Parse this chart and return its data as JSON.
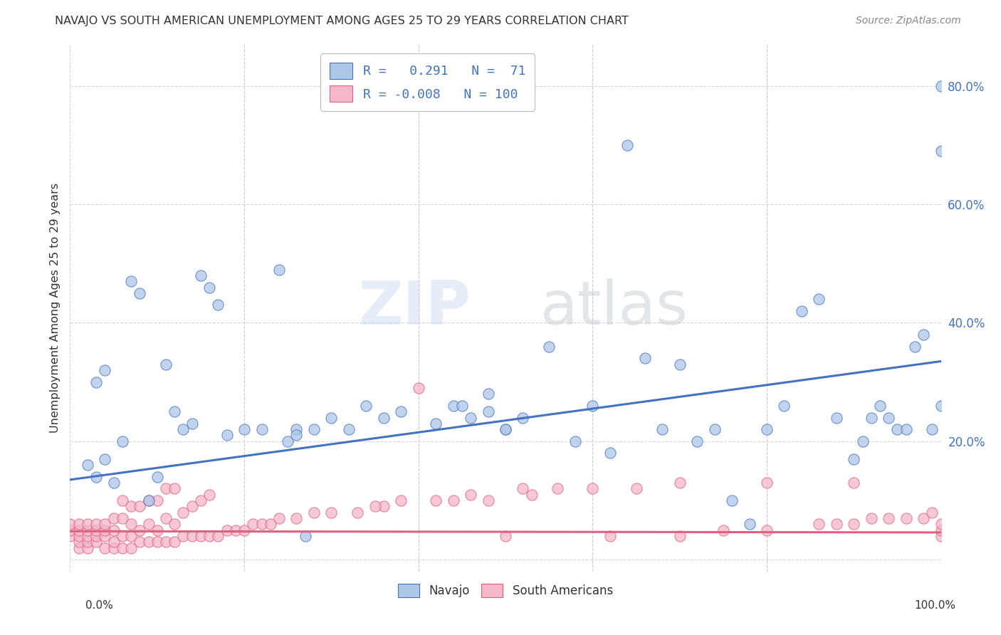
{
  "title": "NAVAJO VS SOUTH AMERICAN UNEMPLOYMENT AMONG AGES 25 TO 29 YEARS CORRELATION CHART",
  "source": "Source: ZipAtlas.com",
  "ylabel": "Unemployment Among Ages 25 to 29 years",
  "xlim": [
    0.0,
    1.0
  ],
  "ylim": [
    -0.02,
    0.87
  ],
  "xticks": [
    0.0,
    0.2,
    0.4,
    0.6,
    0.8,
    1.0
  ],
  "xticklabels_bottom": [
    "0.0%",
    "",
    "",
    "",
    "",
    "100.0%"
  ],
  "yticks": [
    0.0,
    0.2,
    0.4,
    0.6,
    0.8
  ],
  "yticklabels": [
    "",
    "20.0%",
    "40.0%",
    "60.0%",
    "80.0%"
  ],
  "navajo_R": 0.291,
  "navajo_N": 71,
  "south_R": -0.008,
  "south_N": 100,
  "navajo_color": "#aec6e8",
  "south_color": "#f4b8c8",
  "navajo_line_color": "#4472c4",
  "south_line_color": "#e06080",
  "background_color": "#ffffff",
  "grid_color": "#cccccc",
  "watermark_zip": "ZIP",
  "watermark_atlas": "atlas",
  "nav_line_start": 0.135,
  "nav_line_end": 0.335,
  "south_line_start": 0.048,
  "south_line_end": 0.046,
  "navajo_x": [
    0.02,
    0.03,
    0.04,
    0.05,
    0.06,
    0.07,
    0.08,
    0.09,
    0.1,
    0.11,
    0.12,
    0.13,
    0.14,
    0.15,
    0.16,
    0.17,
    0.18,
    0.2,
    0.22,
    0.24,
    0.26,
    0.28,
    0.3,
    0.32,
    0.34,
    0.36,
    0.38,
    0.42,
    0.44,
    0.46,
    0.48,
    0.5,
    0.52,
    0.55,
    0.58,
    0.6,
    0.62,
    0.64,
    0.66,
    0.68,
    0.7,
    0.72,
    0.74,
    0.76,
    0.78,
    0.8,
    0.82,
    0.84,
    0.86,
    0.88,
    0.9,
    0.91,
    0.92,
    0.93,
    0.94,
    0.95,
    0.96,
    0.97,
    0.98,
    0.99,
    1.0,
    1.0,
    1.0,
    0.45,
    0.5,
    0.48,
    0.03,
    0.04,
    0.25,
    0.26,
    0.27
  ],
  "navajo_y": [
    0.16,
    0.14,
    0.17,
    0.13,
    0.2,
    0.47,
    0.45,
    0.1,
    0.14,
    0.33,
    0.25,
    0.22,
    0.23,
    0.48,
    0.46,
    0.43,
    0.21,
    0.22,
    0.22,
    0.49,
    0.22,
    0.22,
    0.24,
    0.22,
    0.26,
    0.24,
    0.25,
    0.23,
    0.26,
    0.24,
    0.25,
    0.22,
    0.24,
    0.36,
    0.2,
    0.26,
    0.18,
    0.7,
    0.34,
    0.22,
    0.33,
    0.2,
    0.22,
    0.1,
    0.06,
    0.22,
    0.26,
    0.42,
    0.44,
    0.24,
    0.17,
    0.2,
    0.24,
    0.26,
    0.24,
    0.22,
    0.22,
    0.36,
    0.38,
    0.22,
    0.26,
    0.69,
    0.8,
    0.26,
    0.22,
    0.28,
    0.3,
    0.32,
    0.2,
    0.21,
    0.04
  ],
  "south_x": [
    0.0,
    0.0,
    0.0,
    0.01,
    0.01,
    0.01,
    0.01,
    0.01,
    0.02,
    0.02,
    0.02,
    0.02,
    0.02,
    0.03,
    0.03,
    0.03,
    0.03,
    0.04,
    0.04,
    0.04,
    0.04,
    0.05,
    0.05,
    0.05,
    0.05,
    0.06,
    0.06,
    0.06,
    0.06,
    0.07,
    0.07,
    0.07,
    0.07,
    0.08,
    0.08,
    0.08,
    0.09,
    0.09,
    0.09,
    0.1,
    0.1,
    0.1,
    0.11,
    0.11,
    0.11,
    0.12,
    0.12,
    0.12,
    0.13,
    0.13,
    0.14,
    0.14,
    0.15,
    0.15,
    0.16,
    0.16,
    0.17,
    0.18,
    0.19,
    0.2,
    0.21,
    0.22,
    0.23,
    0.24,
    0.26,
    0.28,
    0.3,
    0.33,
    0.36,
    0.4,
    0.44,
    0.48,
    0.5,
    0.53,
    0.62,
    0.65,
    0.7,
    0.75,
    0.8,
    0.86,
    0.88,
    0.9,
    0.92,
    0.94,
    0.96,
    0.98,
    0.99,
    1.0,
    1.0,
    1.0,
    0.35,
    0.38,
    0.42,
    0.46,
    0.52,
    0.56,
    0.6,
    0.7,
    0.8,
    0.9
  ],
  "south_y": [
    0.04,
    0.05,
    0.06,
    0.02,
    0.03,
    0.04,
    0.05,
    0.06,
    0.02,
    0.03,
    0.04,
    0.05,
    0.06,
    0.03,
    0.04,
    0.05,
    0.06,
    0.02,
    0.04,
    0.05,
    0.06,
    0.02,
    0.03,
    0.05,
    0.07,
    0.02,
    0.04,
    0.07,
    0.1,
    0.02,
    0.04,
    0.06,
    0.09,
    0.03,
    0.05,
    0.09,
    0.03,
    0.06,
    0.1,
    0.03,
    0.05,
    0.1,
    0.03,
    0.07,
    0.12,
    0.03,
    0.06,
    0.12,
    0.04,
    0.08,
    0.04,
    0.09,
    0.04,
    0.1,
    0.04,
    0.11,
    0.04,
    0.05,
    0.05,
    0.05,
    0.06,
    0.06,
    0.06,
    0.07,
    0.07,
    0.08,
    0.08,
    0.08,
    0.09,
    0.29,
    0.1,
    0.1,
    0.04,
    0.11,
    0.04,
    0.12,
    0.04,
    0.05,
    0.05,
    0.06,
    0.06,
    0.06,
    0.07,
    0.07,
    0.07,
    0.07,
    0.08,
    0.04,
    0.05,
    0.06,
    0.09,
    0.1,
    0.1,
    0.11,
    0.12,
    0.12,
    0.12,
    0.13,
    0.13,
    0.13
  ]
}
